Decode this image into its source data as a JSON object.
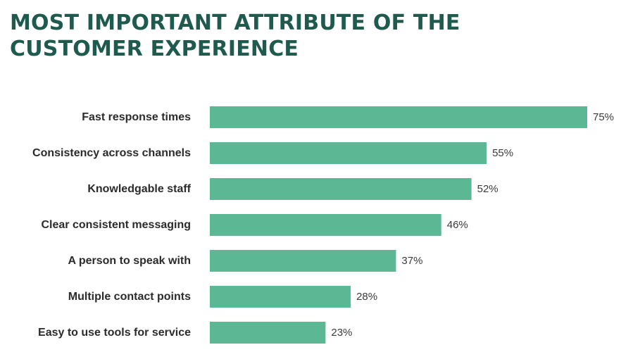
{
  "colors": {
    "title": "#1f5a4f",
    "bar": "#5cb894",
    "label": "#2b2b2b",
    "value": "#3a3a3a"
  },
  "chart_data": {
    "type": "bar",
    "orientation": "horizontal",
    "title": "MOST IMPORTANT ATTRIBUTE OF THE CUSTOMER EXPERIENCE",
    "title_lines": [
      "MOST IMPORTANT ATTRIBUTE OF THE",
      "CUSTOMER EXPERIENCE"
    ],
    "categories": [
      "Fast response times",
      "Consistency across channels",
      "Knowledgable staff",
      "Clear consistent messaging",
      "A person to speak with",
      "Multiple contact points",
      "Easy to use tools for service"
    ],
    "values": [
      75,
      55,
      52,
      46,
      37,
      28,
      23
    ],
    "value_labels": [
      "75%",
      "55%",
      "52%",
      "46%",
      "37%",
      "28%",
      "23%"
    ],
    "unit": "%",
    "xlim": [
      0,
      75
    ],
    "xlabel": "",
    "ylabel": "",
    "grid": false,
    "legend": "none"
  }
}
